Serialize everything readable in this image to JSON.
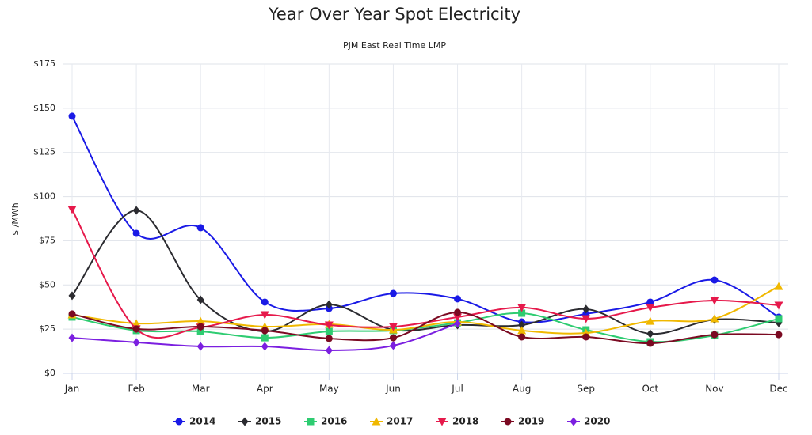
{
  "chart_data": {
    "type": "line",
    "title": "Year Over Year Spot Electricity",
    "subtitle": "PJM East Real Time LMP",
    "y_label": "$ /MWh",
    "categories": [
      "Jan",
      "Feb",
      "Mar",
      "Apr",
      "May",
      "Jun",
      "Jul",
      "Aug",
      "Sep",
      "Oct",
      "Nov",
      "Dec"
    ],
    "ylim": [
      0,
      175
    ],
    "yticks": [
      {
        "value": 0,
        "label": "$0"
      },
      {
        "value": 25,
        "label": "$25"
      },
      {
        "value": 50,
        "label": "$50"
      },
      {
        "value": 75,
        "label": "$75"
      },
      {
        "value": 100,
        "label": "$100"
      },
      {
        "value": 125,
        "label": "$125"
      },
      {
        "value": 150,
        "label": "$150"
      },
      {
        "value": 175,
        "label": "$175"
      }
    ],
    "grid": true,
    "smooth": true,
    "legend": "bottom",
    "series": [
      {
        "name": "2014",
        "color": "#1a1ae6",
        "marker": "circle",
        "values": [
          145.5,
          79.2,
          82.4,
          40.3,
          36.7,
          45.2,
          42.1,
          29.1,
          33.6,
          40.3,
          52.8,
          31.8
        ]
      },
      {
        "name": "2015",
        "color": "#2b2b30",
        "marker": "diamond",
        "values": [
          43.9,
          92.2,
          41.6,
          23.7,
          38.9,
          24.6,
          27.3,
          27.3,
          36.3,
          22.4,
          30.4,
          28.6
        ]
      },
      {
        "name": "2016",
        "color": "#2ecc71",
        "marker": "square",
        "values": [
          31.8,
          24.2,
          23.7,
          20.1,
          23.7,
          24.2,
          28.6,
          34.0,
          24.6,
          17.9,
          21.5,
          30.9
        ]
      },
      {
        "name": "2017",
        "color": "#f0b800",
        "marker": "triangle",
        "values": [
          33.1,
          28.2,
          29.5,
          26.4,
          27.8,
          24.6,
          29.1,
          24.2,
          22.8,
          29.5,
          30.9,
          49.2
        ]
      },
      {
        "name": "2018",
        "color": "#e6194b",
        "marker": "triangle-down",
        "values": [
          92.7,
          25.1,
          26.0,
          33.1,
          27.3,
          26.4,
          31.8,
          37.2,
          30.9,
          37.2,
          41.2,
          38.5
        ]
      },
      {
        "name": "2019",
        "color": "#7b0a22",
        "marker": "circle",
        "values": [
          33.6,
          25.1,
          26.4,
          24.2,
          19.7,
          20.1,
          34.5,
          20.6,
          20.6,
          17.0,
          21.9,
          21.9
        ]
      },
      {
        "name": "2020",
        "color": "#7b1fe0",
        "marker": "diamond",
        "values": [
          20.1,
          17.5,
          15.2,
          15.2,
          13.0,
          15.7,
          28.2,
          null,
          null,
          null,
          null,
          null
        ]
      }
    ]
  }
}
